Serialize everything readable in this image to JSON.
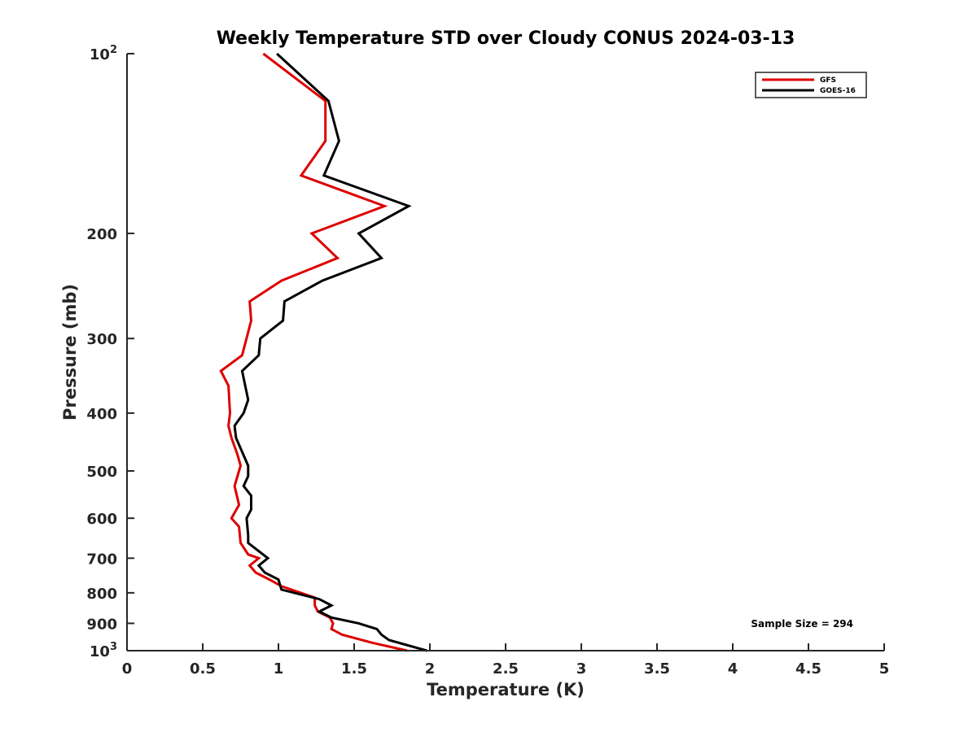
{
  "chart_data": {
    "type": "line",
    "title": "Weekly Temperature STD over Cloudy CONUS 2024-03-13",
    "xlabel": "Temperature (K)",
    "ylabel": "Pressure (mb)",
    "xlim": [
      0,
      5
    ],
    "ylim": [
      100,
      1000
    ],
    "y_scale": "log",
    "y_reversed": true,
    "grid": false,
    "legend_position": "top-right",
    "x_ticks": [
      "0",
      "0.5",
      "1",
      "1.5",
      "2",
      "2.5",
      "3",
      "3.5",
      "4",
      "4.5",
      "5"
    ],
    "y_ticks": [
      {
        "value": 100,
        "base": "10",
        "exp": "2"
      },
      {
        "value": 200,
        "label": "200"
      },
      {
        "value": 300,
        "label": "300"
      },
      {
        "value": 400,
        "label": "400"
      },
      {
        "value": 500,
        "label": "500"
      },
      {
        "value": 600,
        "label": "600"
      },
      {
        "value": 700,
        "label": "700"
      },
      {
        "value": 800,
        "label": "800"
      },
      {
        "value": 900,
        "label": "900"
      },
      {
        "value": 1000,
        "base": "10",
        "exp": "3"
      }
    ],
    "annotation": "Sample Size = 294",
    "series": [
      {
        "name": "GFS",
        "color": "#dd0000",
        "points": [
          [
            0.9,
            100
          ],
          [
            1.31,
            120
          ],
          [
            1.31,
            140
          ],
          [
            1.15,
            160
          ],
          [
            1.7,
            180
          ],
          [
            1.22,
            200
          ],
          [
            1.39,
            220
          ],
          [
            1.02,
            240
          ],
          [
            0.81,
            260
          ],
          [
            0.82,
            280
          ],
          [
            0.76,
            320
          ],
          [
            0.62,
            340
          ],
          [
            0.67,
            360
          ],
          [
            0.68,
            400
          ],
          [
            0.67,
            420
          ],
          [
            0.69,
            440
          ],
          [
            0.73,
            470
          ],
          [
            0.75,
            490
          ],
          [
            0.71,
            530
          ],
          [
            0.74,
            570
          ],
          [
            0.69,
            600
          ],
          [
            0.74,
            620
          ],
          [
            0.75,
            660
          ],
          [
            0.8,
            690
          ],
          [
            0.87,
            700
          ],
          [
            0.81,
            720
          ],
          [
            0.85,
            740
          ],
          [
            0.94,
            760
          ],
          [
            1.02,
            780
          ],
          [
            1.24,
            815
          ],
          [
            1.24,
            840
          ],
          [
            1.26,
            860
          ],
          [
            1.34,
            880
          ],
          [
            1.36,
            900
          ],
          [
            1.35,
            920
          ],
          [
            1.42,
            940
          ],
          [
            1.62,
            970
          ],
          [
            1.85,
            1000
          ]
        ]
      },
      {
        "name": "GOES-16",
        "color": "#000000",
        "points": [
          [
            0.99,
            100
          ],
          [
            1.33,
            120
          ],
          [
            1.4,
            140
          ],
          [
            1.3,
            160
          ],
          [
            1.86,
            180
          ],
          [
            1.53,
            200
          ],
          [
            1.68,
            220
          ],
          [
            1.29,
            240
          ],
          [
            1.04,
            260
          ],
          [
            1.03,
            280
          ],
          [
            0.88,
            300
          ],
          [
            0.87,
            320
          ],
          [
            0.76,
            340
          ],
          [
            0.8,
            380
          ],
          [
            0.77,
            400
          ],
          [
            0.71,
            420
          ],
          [
            0.72,
            440
          ],
          [
            0.8,
            490
          ],
          [
            0.8,
            510
          ],
          [
            0.77,
            530
          ],
          [
            0.82,
            550
          ],
          [
            0.82,
            580
          ],
          [
            0.79,
            600
          ],
          [
            0.8,
            640
          ],
          [
            0.8,
            660
          ],
          [
            0.93,
            700
          ],
          [
            0.87,
            720
          ],
          [
            0.91,
            740
          ],
          [
            1.0,
            760
          ],
          [
            1.02,
            790
          ],
          [
            1.27,
            820
          ],
          [
            1.35,
            840
          ],
          [
            1.27,
            860
          ],
          [
            1.35,
            880
          ],
          [
            1.53,
            900
          ],
          [
            1.65,
            920
          ],
          [
            1.68,
            940
          ],
          [
            1.73,
            960
          ],
          [
            1.98,
            1000
          ]
        ]
      }
    ]
  }
}
